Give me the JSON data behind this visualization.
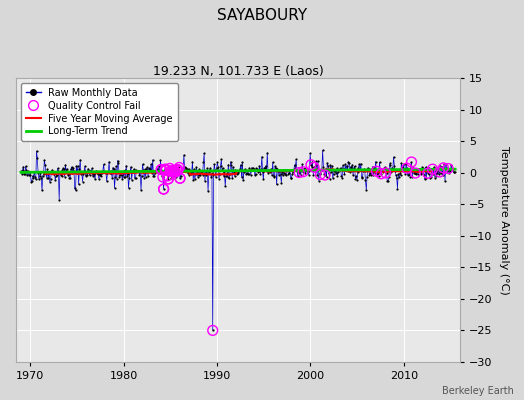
{
  "title": "SAYABOURY",
  "subtitle": "19.233 N, 101.733 E (Laos)",
  "ylabel": "Temperature Anomaly (°C)",
  "attribution": "Berkeley Earth",
  "xlim": [
    1968.5,
    2016.0
  ],
  "ylim": [
    -30,
    15
  ],
  "yticks": [
    -30,
    -25,
    -20,
    -15,
    -10,
    -5,
    0,
    5,
    10,
    15
  ],
  "xticks": [
    1970,
    1980,
    1990,
    2000,
    2010
  ],
  "outer_bg": "#d8d8d8",
  "inner_bg": "#e8e8e8",
  "grid_color": "#ffffff",
  "raw_line_color": "#0000cc",
  "raw_dot_color": "#000000",
  "qc_fail_color": "#ff00ff",
  "moving_avg_color": "#ff0000",
  "trend_color": "#00cc00",
  "seed": 42,
  "t_start": 1969.0,
  "t_end": 2015.5,
  "outlier_time": 1989.5,
  "outlier_val": -25.0,
  "qc_cluster1_start": 1984.0,
  "qc_cluster1_end": 1986.2,
  "qc_cluster2_times": [
    1989.5,
    1998.8,
    1999.2,
    2000.0,
    2000.4,
    2001.0,
    2001.5,
    2007.0,
    2007.5,
    2008.0,
    2010.3,
    2010.8,
    2011.2,
    2012.5,
    2013.0,
    2013.8,
    2014.2,
    2014.7
  ],
  "title_fontsize": 11,
  "subtitle_fontsize": 9,
  "tick_fontsize": 8,
  "ylabel_fontsize": 8
}
